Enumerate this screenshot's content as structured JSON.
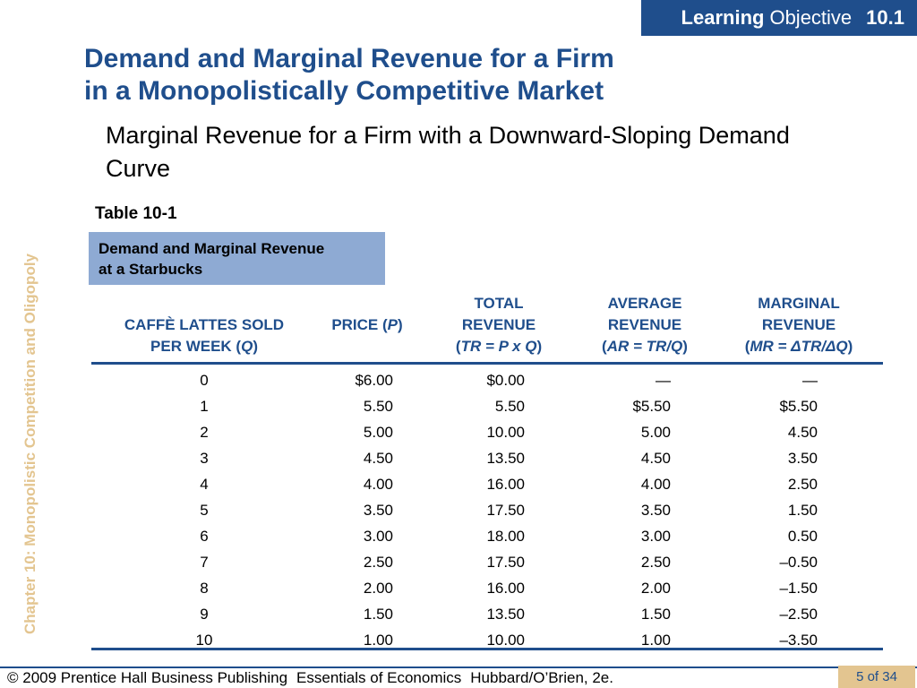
{
  "header_badge": {
    "word1": "Learning",
    "word2": "Objective",
    "number": "10.1"
  },
  "side_label": "Chapter 10:  Monopolistic Competition and Oligopoly",
  "title": {
    "line1": "Demand and Marginal Revenue for a Firm",
    "line2": "in a Monopolistically Competitive Market"
  },
  "subtitle": "Marginal Revenue for a Firm with a Downward-Sloping Demand Curve",
  "table": {
    "label": "Table 10-1",
    "caption_line1": "Demand and Marginal Revenue",
    "caption_line2": "at a Starbucks",
    "columns": [
      {
        "line1": "CAFFÈ LATTES SOLD",
        "line2": "PER WEEK (",
        "var": "Q",
        "close": ")"
      },
      {
        "line1": "PRICE (",
        "var": "P",
        "close": ")"
      },
      {
        "line1": "TOTAL",
        "line2": "REVENUE",
        "formula": "TR = P x Q"
      },
      {
        "line1": "AVERAGE",
        "line2": "REVENUE",
        "formula": "AR = TR/Q"
      },
      {
        "line1": "MARGINAL",
        "line2": "REVENUE",
        "formula": "MR = ΔTR/ΔQ"
      }
    ],
    "rows": [
      [
        "0",
        "$6.00",
        "$0.00",
        "—",
        "—"
      ],
      [
        "1",
        "5.50",
        "5.50",
        "$5.50",
        "$5.50"
      ],
      [
        "2",
        "5.00",
        "10.00",
        "5.00",
        "4.50"
      ],
      [
        "3",
        "4.50",
        "13.50",
        "4.50",
        "3.50"
      ],
      [
        "4",
        "4.00",
        "16.00",
        "4.00",
        "2.50"
      ],
      [
        "5",
        "3.50",
        "17.50",
        "3.50",
        "1.50"
      ],
      [
        "6",
        "3.00",
        "18.00",
        "3.00",
        "0.50"
      ],
      [
        "7",
        "2.50",
        "17.50",
        "2.50",
        "–0.50"
      ],
      [
        "8",
        "2.00",
        "16.00",
        "2.00",
        "–1.50"
      ],
      [
        "9",
        "1.50",
        "13.50",
        "1.50",
        "–2.50"
      ],
      [
        "10",
        "1.00",
        "10.00",
        "1.00",
        "–3.50"
      ]
    ]
  },
  "footer": {
    "copyright": "© 2009 Prentice Hall Business Publishing",
    "book": "Essentials of Economics",
    "authors": "Hubbard/O’Brien, 2e.",
    "page": "5 of 34"
  },
  "colors": {
    "accent": "#1f4e8c",
    "caption_bg": "#8eaad3",
    "gold": "#e3c590"
  }
}
